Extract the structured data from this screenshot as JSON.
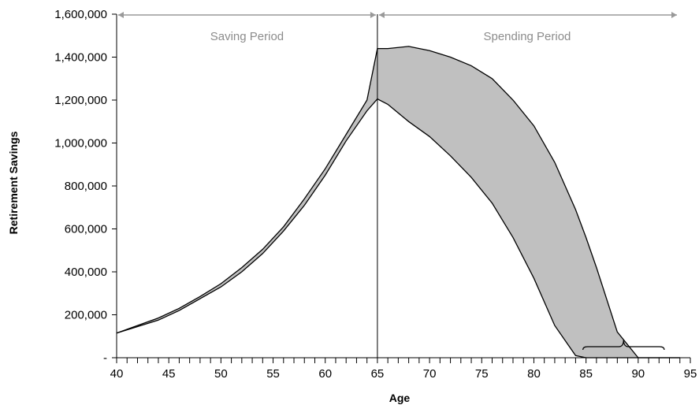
{
  "chart_data": {
    "type": "area",
    "xlabel": "Age",
    "ylabel": "Retirement Savings",
    "xlim": [
      40,
      95
    ],
    "ylim": [
      0,
      1600000
    ],
    "x_ticks": [
      "40",
      "45",
      "50",
      "55",
      "60",
      "65",
      "70",
      "75",
      "80",
      "85",
      "90",
      "95"
    ],
    "y_ticks": [
      "-",
      "200,000",
      "400,000",
      "600,000",
      "800,000",
      "1,000,000",
      "1,200,000",
      "1,400,000",
      "1,600,000"
    ],
    "grid": false,
    "fill_color": "#c0c0c0",
    "line_color": "#000000",
    "arrow_color": "#999999",
    "retirement_age": 65,
    "annotations": {
      "saving_period": "Saving Period",
      "spending_period": "Spending Period"
    },
    "depletion_range_bracket": [
      84.7,
      92.5
    ],
    "series": [
      {
        "x": [
          40,
          42,
          44,
          46,
          48,
          50,
          52,
          54,
          56,
          58,
          60,
          62,
          64,
          65,
          66,
          68,
          70,
          72,
          74,
          76,
          78,
          80,
          82,
          84,
          85,
          86,
          88,
          90,
          92,
          93,
          94
        ],
        "values": [
          115000,
          150000,
          185000,
          230000,
          285000,
          345000,
          420000,
          505000,
          610000,
          740000,
          880000,
          1040000,
          1200000,
          1440000,
          1440000,
          1450000,
          1430000,
          1400000,
          1360000,
          1300000,
          1200000,
          1080000,
          910000,
          690000,
          560000,
          420000,
          120000,
          0,
          0,
          0,
          0
        ]
      },
      {
        "x": [
          40,
          42,
          44,
          46,
          48,
          50,
          52,
          54,
          56,
          58,
          60,
          62,
          64,
          65,
          66,
          68,
          70,
          72,
          74,
          76,
          78,
          80,
          82,
          84,
          85,
          86,
          88,
          90,
          92,
          93,
          94
        ],
        "values": [
          115000,
          145000,
          175000,
          220000,
          275000,
          330000,
          400000,
          485000,
          590000,
          710000,
          850000,
          1010000,
          1150000,
          1205000,
          1180000,
          1100000,
          1030000,
          940000,
          840000,
          720000,
          560000,
          370000,
          150000,
          10000,
          0,
          0,
          0,
          0,
          0,
          0,
          0
        ]
      }
    ]
  }
}
